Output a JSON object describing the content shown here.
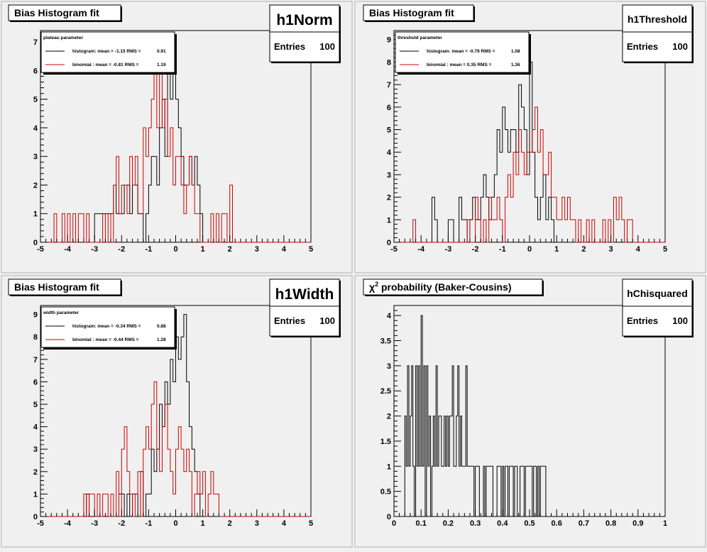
{
  "colors": {
    "histogram": "#000000",
    "binomial": "#cc0000",
    "background": "#f0f0f0"
  },
  "chart_data": [
    {
      "type": "histogram",
      "title": "Bias Histogram fit",
      "stats_name": "h1Norm",
      "stats_entries_label": "Entries",
      "stats_entries_value": "100",
      "legend_title": "plateau parameter",
      "legend": [
        {
          "label": "histogram: mean = -1.15 RMS =",
          "rms": "0.91",
          "color": "#000000"
        },
        {
          "label": "binomial : mean = -0.81 RMS =",
          "rms": "1.19",
          "color": "#cc0000"
        }
      ],
      "xlim": [
        -5,
        5
      ],
      "ylim": [
        0,
        7.4
      ],
      "xticks": [
        "-5",
        "-4",
        "-3",
        "-2",
        "-1",
        "0",
        "1",
        "2",
        "3",
        "4",
        "5"
      ],
      "yticks": [
        "0",
        "1",
        "2",
        "3",
        "4",
        "5",
        "6",
        "7"
      ],
      "series": [
        {
          "name": "histogram",
          "color": "#000000",
          "bin_start": -5,
          "bin_width": 0.1,
          "values": [
            0,
            0,
            0,
            0,
            0,
            0,
            0,
            0,
            0,
            0,
            0,
            0,
            0,
            0,
            0,
            0,
            0,
            0,
            0,
            0,
            1,
            1,
            1,
            1,
            1,
            1,
            1,
            2,
            1,
            1,
            1,
            2,
            2,
            1,
            2,
            2,
            1,
            1,
            0,
            1,
            2,
            3,
            3,
            2,
            4,
            5,
            3,
            6,
            5,
            6,
            5,
            4,
            3,
            2,
            2,
            3,
            2,
            3,
            2,
            1,
            0,
            0,
            0,
            0,
            0,
            0,
            0,
            0,
            0,
            0,
            0,
            0,
            0,
            0,
            0,
            0,
            0,
            0,
            0,
            0,
            0,
            0,
            0,
            0,
            0,
            0,
            0,
            0,
            0,
            0,
            0,
            0,
            0,
            0,
            0,
            0,
            0,
            0,
            0,
            0
          ]
        },
        {
          "name": "binomial",
          "color": "#cc0000",
          "bin_start": -5,
          "bin_width": 0.1,
          "values": [
            0,
            0,
            0,
            0,
            0,
            1,
            0,
            0,
            1,
            0,
            1,
            0,
            1,
            0,
            1,
            1,
            0,
            1,
            0,
            0,
            0,
            0,
            0,
            1,
            0,
            1,
            0,
            2,
            3,
            1,
            2,
            2,
            1,
            3,
            2,
            3,
            1,
            1,
            4,
            3,
            4,
            5,
            6,
            4,
            6,
            4,
            5,
            3,
            4,
            2,
            3,
            3,
            2,
            1,
            2,
            3,
            2,
            1,
            1,
            0,
            0,
            0,
            0,
            1,
            0,
            1,
            0,
            1,
            1,
            0,
            2,
            0,
            0,
            0,
            0,
            0,
            0,
            0,
            0,
            0,
            0,
            0,
            0,
            0,
            0,
            0,
            0,
            0,
            0,
            0,
            0,
            0,
            0,
            0,
            0,
            0,
            0,
            0,
            0,
            0
          ]
        }
      ]
    },
    {
      "type": "histogram",
      "title": "Bias Histogram fit",
      "stats_name": "h1Threshold",
      "stats_entries_label": "Entries",
      "stats_entries_value": "100",
      "legend_title": "threshold parameter",
      "legend": [
        {
          "label": "histogram: mean = -0.79 RMS =",
          "rms": "1.08",
          "color": "#000000"
        },
        {
          "label": "binomial : mean = 0.35 RMS =",
          "rms": "1.36",
          "color": "#cc0000"
        }
      ],
      "xlim": [
        -5,
        5
      ],
      "ylim": [
        0,
        9.4
      ],
      "xticks": [
        "-5",
        "-4",
        "-3",
        "-2",
        "-1",
        "0",
        "1",
        "2",
        "3",
        "4",
        "5"
      ],
      "yticks": [
        "0",
        "1",
        "2",
        "3",
        "4",
        "5",
        "6",
        "7",
        "8",
        "9"
      ],
      "series": [
        {
          "name": "histogram",
          "color": "#000000",
          "bin_start": -5,
          "bin_width": 0.1,
          "values": [
            0,
            0,
            0,
            0,
            0,
            0,
            0,
            0,
            0,
            0,
            0,
            0,
            0,
            0,
            2,
            1,
            0,
            0,
            0,
            0,
            1,
            1,
            0,
            0,
            2,
            1,
            1,
            0,
            1,
            2,
            1,
            1,
            2,
            3,
            2,
            1,
            2,
            3,
            5,
            4,
            6,
            5,
            4,
            5,
            5,
            4,
            7,
            6,
            5,
            3,
            8,
            4,
            2,
            1,
            2,
            3,
            1,
            2,
            1,
            0,
            0,
            0,
            0,
            0,
            0,
            0,
            0,
            0,
            0,
            0,
            0,
            0,
            0,
            0,
            0,
            0,
            0,
            0,
            0,
            0,
            0,
            0,
            0,
            0,
            0,
            0,
            0,
            0,
            0,
            0,
            0,
            0,
            0,
            0,
            0,
            0,
            0,
            0,
            0,
            0
          ]
        },
        {
          "name": "binomial",
          "color": "#cc0000",
          "bin_start": -5,
          "bin_width": 0.1,
          "values": [
            0,
            0,
            0,
            0,
            0,
            0,
            0,
            1,
            0,
            0,
            0,
            0,
            0,
            0,
            0,
            0,
            0,
            0,
            0,
            0,
            0,
            0,
            0,
            0,
            0,
            0,
            0,
            1,
            0,
            0,
            2,
            1,
            0,
            1,
            0,
            2,
            1,
            1,
            2,
            1,
            0,
            2,
            3,
            2,
            4,
            3,
            5,
            4,
            3,
            4,
            4,
            5,
            6,
            4,
            5,
            3,
            3,
            4,
            2,
            2,
            1,
            1,
            2,
            1,
            2,
            1,
            1,
            0,
            1,
            0,
            0,
            1,
            0,
            1,
            0,
            0,
            0,
            1,
            0,
            1,
            0,
            2,
            1,
            2,
            1,
            0,
            1,
            1,
            0,
            0,
            0,
            0,
            0,
            0,
            0,
            0,
            0,
            0,
            0,
            0
          ]
        }
      ]
    },
    {
      "type": "histogram",
      "title": "Bias Histogram fit",
      "stats_name": "h1Width",
      "stats_entries_label": "Entries",
      "stats_entries_value": "100",
      "legend_title": "width parameter",
      "legend": [
        {
          "label": "histogram: mean = -0.34 RMS =",
          "rms": "0.88",
          "color": "#000000"
        },
        {
          "label": "binomial : mean = -0.44 RMS =",
          "rms": "1.28",
          "color": "#cc0000"
        }
      ],
      "xlim": [
        -5,
        5
      ],
      "ylim": [
        0,
        9.4
      ],
      "xticks": [
        "-5",
        "-4",
        "-3",
        "-2",
        "-1",
        "0",
        "1",
        "2",
        "3",
        "4",
        "5"
      ],
      "yticks": [
        "0",
        "1",
        "2",
        "3",
        "4",
        "5",
        "6",
        "7",
        "8",
        "9"
      ],
      "series": [
        {
          "name": "histogram",
          "color": "#000000",
          "bin_start": -5,
          "bin_width": 0.1,
          "values": [
            0,
            0,
            0,
            0,
            0,
            0,
            0,
            0,
            0,
            0,
            0,
            0,
            0,
            0,
            0,
            0,
            0,
            1,
            0,
            0,
            0,
            0,
            0,
            0,
            0,
            0,
            0,
            0,
            0,
            1,
            1,
            0,
            1,
            0,
            1,
            1,
            0,
            2,
            0,
            1,
            1,
            3,
            2,
            3,
            5,
            4,
            6,
            5,
            7,
            6,
            8,
            7,
            8,
            9,
            6,
            4,
            3,
            2,
            1,
            0,
            0,
            0,
            0,
            0,
            0,
            0,
            0,
            0,
            0,
            0,
            0,
            0,
            0,
            0,
            0,
            0,
            0,
            0,
            0,
            0,
            0,
            0,
            0,
            0,
            0,
            0,
            0,
            0,
            0,
            0,
            0,
            0,
            0,
            0,
            0,
            0,
            0,
            0,
            0,
            0
          ]
        },
        {
          "name": "binomial",
          "color": "#cc0000",
          "bin_start": -5,
          "bin_width": 0.1,
          "values": [
            0,
            0,
            0,
            0,
            0,
            0,
            0,
            0,
            0,
            0,
            0,
            0,
            0,
            0,
            0,
            0,
            1,
            0,
            1,
            1,
            0,
            1,
            0,
            1,
            1,
            0,
            1,
            0,
            2,
            0,
            3,
            4,
            2,
            1,
            0,
            1,
            2,
            0,
            3,
            4,
            3,
            5,
            6,
            3,
            2,
            4,
            5,
            3,
            2,
            1,
            3,
            4,
            3,
            2,
            3,
            2,
            0,
            1,
            2,
            1,
            2,
            0,
            1,
            2,
            1,
            1,
            0,
            0,
            0,
            0,
            0,
            0,
            0,
            0,
            0,
            0,
            0,
            0,
            0,
            0,
            0,
            0,
            0,
            0,
            0,
            0,
            0,
            0,
            0,
            0,
            0,
            0,
            0,
            0,
            0,
            0,
            0,
            0,
            0,
            0
          ]
        }
      ]
    },
    {
      "type": "histogram",
      "title": "χ² probability (Baker-Cousins)",
      "title_main": "χ",
      "title_sup": "2",
      "title_rest": " probability (Baker-Cousins)",
      "stats_name": "hChisquared",
      "stats_entries_label": "Entries",
      "stats_entries_value": "100",
      "legend": [],
      "xlim": [
        0,
        1
      ],
      "ylim": [
        0,
        4.2
      ],
      "xticks": [
        "0",
        "0.1",
        "0.2",
        "0.3",
        "0.4",
        "0.5",
        "0.6",
        "0.7",
        "0.8",
        "0.9",
        "1"
      ],
      "yticks": [
        "0",
        "0.5",
        "1",
        "1.5",
        "2",
        "2.5",
        "3",
        "3.5",
        "4"
      ],
      "ytick_values": [
        0,
        0.5,
        1,
        1.5,
        2,
        2.5,
        3,
        3.5,
        4
      ],
      "series": [
        {
          "name": "histogram",
          "color": "#000000",
          "bin_start": 0,
          "bin_width": 0.005,
          "values": [
            0,
            0,
            0,
            0,
            0,
            0,
            0,
            0,
            2,
            1,
            3,
            1,
            2,
            3,
            1,
            0,
            3,
            1,
            3,
            1,
            4,
            1,
            3,
            0,
            3,
            1,
            2,
            0,
            1,
            2,
            1,
            3,
            1,
            2,
            2,
            1,
            1,
            2,
            1,
            2,
            1,
            2,
            2,
            3,
            1,
            1,
            2,
            3,
            1,
            2,
            1,
            1,
            1,
            3,
            1,
            1,
            1,
            1,
            1,
            0,
            1,
            1,
            1,
            0,
            0,
            0,
            1,
            0,
            1,
            1,
            1,
            1,
            1,
            0,
            0,
            0,
            1,
            1,
            1,
            0,
            1,
            0,
            1,
            1,
            0,
            1,
            1,
            1,
            0,
            1,
            1,
            0,
            0,
            1,
            1,
            1,
            0,
            1,
            1,
            1,
            1,
            1,
            0,
            1,
            1,
            0,
            1,
            0,
            1,
            1,
            1,
            1,
            0,
            0,
            0,
            0,
            0,
            0,
            0,
            0,
            0,
            0,
            0,
            0,
            0,
            0,
            0,
            0,
            0,
            0,
            0,
            0,
            0,
            0,
            0,
            0,
            0,
            0,
            0,
            0,
            0,
            0,
            0,
            0,
            0,
            0,
            0,
            0,
            0,
            0,
            0,
            0,
            0,
            0,
            0,
            0,
            0,
            0,
            0,
            0
          ]
        }
      ]
    }
  ]
}
